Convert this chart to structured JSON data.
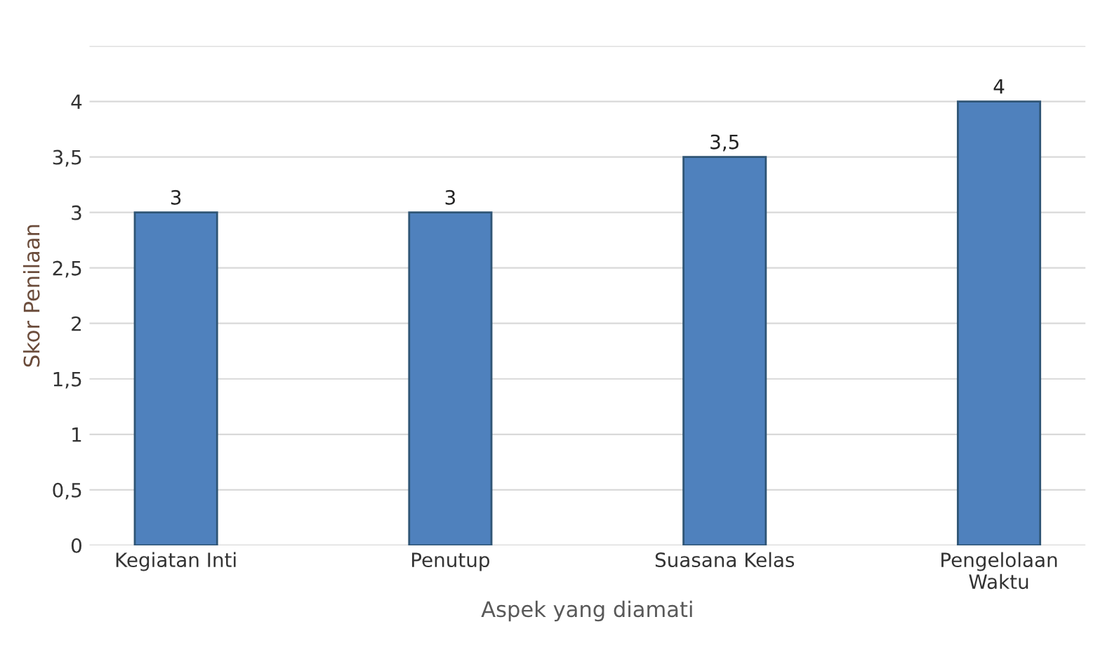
{
  "chart_data": {
    "type": "bar",
    "xlabel": "Aspek yang diamati",
    "ylabel": "Skor Penilaan",
    "categories": [
      "Kegiatan Inti",
      "Penutup",
      "Suasana Kelas",
      "Pengelolaan\nWaktu"
    ],
    "values": [
      3,
      3,
      3.5,
      4
    ],
    "color": "#4f81bd",
    "value_labels": [
      "3",
      "3",
      "3,5",
      "4"
    ],
    "ylim": [
      0,
      4.5
    ],
    "yticks": [
      0,
      {
        "value": 0.5,
        "label": "0,5"
      },
      1,
      {
        "value": 1.5,
        "label": "1,5"
      },
      2,
      {
        "value": 2.5,
        "label": "2,5"
      },
      3,
      {
        "value": 3.5,
        "label": "3,5"
      },
      4,
      {
        "value": 4.5,
        "label": null
      }
    ],
    "grid": "y",
    "legend": false
  }
}
